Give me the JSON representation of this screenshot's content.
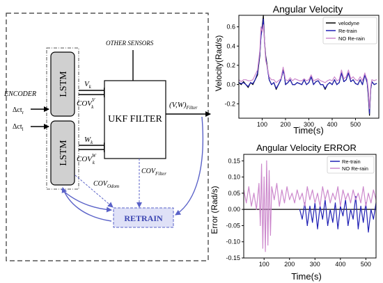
{
  "diagram": {
    "encoder_label": "ENCODER",
    "input_r": "Δct",
    "input_r_sub": "r",
    "input_l": "Δct",
    "input_l_sub": "l",
    "lstm_top": "LSTM",
    "lstm_bottom": "LSTM",
    "vk": "V",
    "vk_sub": "k",
    "cov_vk": "COV",
    "cov_vk_sup": "V",
    "cov_vk_sub": "k",
    "wk": "W",
    "wk_sub": "k",
    "cov_wk": "COV",
    "cov_wk_sup": "W",
    "cov_wk_sub": "k",
    "other_sensors": "OTHER SENSORS",
    "ukf": "UKF FILTER",
    "output": "(V,W)",
    "output_sub": "Filter",
    "cov_filter": "COV",
    "cov_filter_sub": "Filter",
    "cov_odom": "COV",
    "cov_odom_sub": "Odom",
    "retrain": "RETRAIN"
  },
  "chart_data": [
    {
      "type": "line",
      "title": "Angular Velocity",
      "xlabel": "Time(s)",
      "ylabel": "Velocity(Rad/s)",
      "xlim": [
        0,
        600
      ],
      "ylim": [
        -0.35,
        0.72
      ],
      "xticks": [
        "100",
        "200",
        "300",
        "400",
        "500"
      ],
      "yticks": [
        "-0.2",
        "0.0",
        "0.2",
        "0.4",
        "0.6"
      ],
      "legend_position": "top-right",
      "grid": false,
      "x": [
        0,
        10,
        20,
        30,
        40,
        50,
        60,
        70,
        80,
        90,
        95,
        100,
        105,
        110,
        115,
        120,
        130,
        140,
        150,
        160,
        170,
        180,
        185,
        190,
        195,
        200,
        210,
        220,
        230,
        240,
        250,
        260,
        270,
        280,
        290,
        300,
        310,
        320,
        330,
        340,
        350,
        360,
        370,
        380,
        390,
        400,
        410,
        420,
        430,
        440,
        450,
        460,
        470,
        480,
        490,
        500,
        510,
        520,
        530,
        540,
        545,
        550,
        555,
        560,
        565,
        570,
        580,
        590
      ],
      "series": [
        {
          "name": "velodyne",
          "color": "#000000",
          "values": [
            0.02,
            0.0,
            0.03,
            0.0,
            -0.03,
            0.02,
            0.0,
            0.05,
            0.1,
            0.3,
            0.52,
            0.6,
            0.72,
            0.45,
            0.3,
            0.22,
            0.05,
            0.0,
            0.02,
            -0.05,
            0.0,
            0.05,
            0.1,
            0.15,
            0.1,
            0.0,
            0.02,
            0.05,
            0.0,
            0.0,
            0.02,
            0.01,
            0.0,
            0.05,
            0.0,
            0.02,
            0.08,
            0.0,
            0.03,
            0.04,
            0.0,
            0.0,
            -0.05,
            0.0,
            0.02,
            0.0,
            0.05,
            0.0,
            0.02,
            0.12,
            0.03,
            0.05,
            0.12,
            0.03,
            0.05,
            0.01,
            0.0,
            0.05,
            0.0,
            0.1,
            0.06,
            0.02,
            -0.12,
            -0.32,
            -0.05,
            0.03,
            0.0,
            0.01
          ]
        },
        {
          "name": "Re-train",
          "color": "#1f1fb4",
          "values": [
            0.02,
            0.01,
            0.02,
            0.0,
            -0.02,
            0.02,
            0.01,
            0.05,
            0.12,
            0.32,
            0.5,
            0.58,
            0.68,
            0.43,
            0.28,
            0.2,
            0.05,
            0.0,
            0.02,
            -0.04,
            0.0,
            0.05,
            0.1,
            0.14,
            0.1,
            0.0,
            0.02,
            0.05,
            0.0,
            0.0,
            0.02,
            0.01,
            0.0,
            0.05,
            0.0,
            0.02,
            0.08,
            0.0,
            0.03,
            0.04,
            0.0,
            0.0,
            -0.04,
            0.0,
            0.02,
            0.0,
            0.05,
            0.0,
            0.02,
            0.12,
            0.03,
            0.05,
            0.12,
            0.03,
            0.05,
            0.01,
            0.0,
            0.05,
            0.0,
            0.1,
            0.06,
            0.02,
            -0.1,
            -0.3,
            -0.05,
            0.03,
            0.0,
            0.01
          ]
        },
        {
          "name": "NO Re-rain",
          "color": "#cc88cc",
          "values": [
            0.05,
            0.03,
            0.05,
            0.05,
            0.04,
            0.04,
            0.05,
            0.1,
            0.15,
            0.35,
            0.6,
            0.55,
            0.62,
            0.45,
            0.25,
            0.2,
            0.08,
            0.05,
            0.05,
            0.02,
            0.04,
            0.06,
            0.12,
            0.18,
            0.12,
            0.05,
            0.04,
            0.07,
            0.04,
            0.06,
            0.05,
            0.04,
            0.04,
            0.06,
            0.04,
            0.05,
            0.1,
            0.04,
            0.05,
            0.06,
            0.04,
            0.03,
            0.02,
            0.04,
            0.05,
            0.04,
            0.08,
            0.04,
            0.05,
            0.15,
            0.06,
            0.08,
            0.15,
            0.06,
            0.08,
            0.05,
            0.04,
            0.08,
            0.04,
            0.12,
            0.08,
            0.05,
            -0.05,
            -0.25,
            -0.02,
            0.05,
            0.04,
            0.05
          ]
        }
      ]
    },
    {
      "type": "line",
      "title": "Angular Velocity ERROR",
      "xlabel": "Time(s)",
      "ylabel": "Error (Rad/s)",
      "xlim": [
        20,
        540
      ],
      "ylim": [
        -0.15,
        0.17
      ],
      "xticks": [
        "100",
        "200",
        "300",
        "400",
        "500"
      ],
      "yticks": [
        "-0.15",
        "-0.10",
        "-0.05",
        "0.00",
        "0.05",
        "0.10",
        "0.15"
      ],
      "legend_position": "top-right",
      "grid": false,
      "reference_line": 0,
      "series": [
        {
          "name": "Re-train",
          "color": "#1f1fb4",
          "x": [
            240,
            250,
            260,
            270,
            280,
            290,
            300,
            310,
            320,
            330,
            340,
            350,
            360,
            370,
            380,
            390,
            400,
            410,
            420,
            430,
            440,
            450,
            460,
            470,
            480,
            490,
            500,
            510,
            520,
            530,
            540
          ],
          "values": [
            0.0,
            -0.03,
            0.02,
            -0.05,
            0.01,
            -0.04,
            0.02,
            -0.06,
            0.01,
            -0.03,
            0.03,
            -0.05,
            0.0,
            -0.04,
            0.02,
            -0.06,
            0.01,
            -0.02,
            0.03,
            -0.05,
            0.0,
            -0.03,
            0.04,
            -0.06,
            0.01,
            -0.04,
            0.02,
            -0.07,
            0.0,
            -0.03,
            0.02
          ]
        },
        {
          "name": "NO Re-rain",
          "color": "#cc88cc",
          "x": [
            20,
            30,
            40,
            50,
            60,
            70,
            80,
            85,
            90,
            95,
            100,
            105,
            110,
            115,
            120,
            125,
            130,
            140,
            150,
            160,
            170,
            180,
            190,
            200,
            210,
            220,
            230,
            240,
            250,
            260,
            270,
            280,
            290,
            300,
            310,
            320,
            330,
            340,
            350,
            360,
            370,
            380,
            390,
            400,
            410,
            420,
            430,
            440,
            450,
            460,
            470,
            480,
            490,
            500,
            510,
            520,
            530,
            540
          ],
          "values": [
            0.06,
            0.02,
            0.07,
            0.01,
            0.05,
            0.0,
            0.08,
            -0.05,
            0.14,
            -0.12,
            0.1,
            -0.13,
            0.15,
            -0.11,
            0.12,
            -0.08,
            0.07,
            0.03,
            0.08,
            0.01,
            0.06,
            0.02,
            0.07,
            0.03,
            0.05,
            0.02,
            0.06,
            0.03,
            0.05,
            0.01,
            0.07,
            0.03,
            0.06,
            0.02,
            0.05,
            0.01,
            0.07,
            0.03,
            0.06,
            0.02,
            0.05,
            0.03,
            0.07,
            0.01,
            0.06,
            0.03,
            0.05,
            0.02,
            0.06,
            0.03,
            0.05,
            0.02,
            0.07,
            0.01,
            0.05,
            0.02,
            0.06,
            0.03
          ]
        }
      ]
    }
  ]
}
